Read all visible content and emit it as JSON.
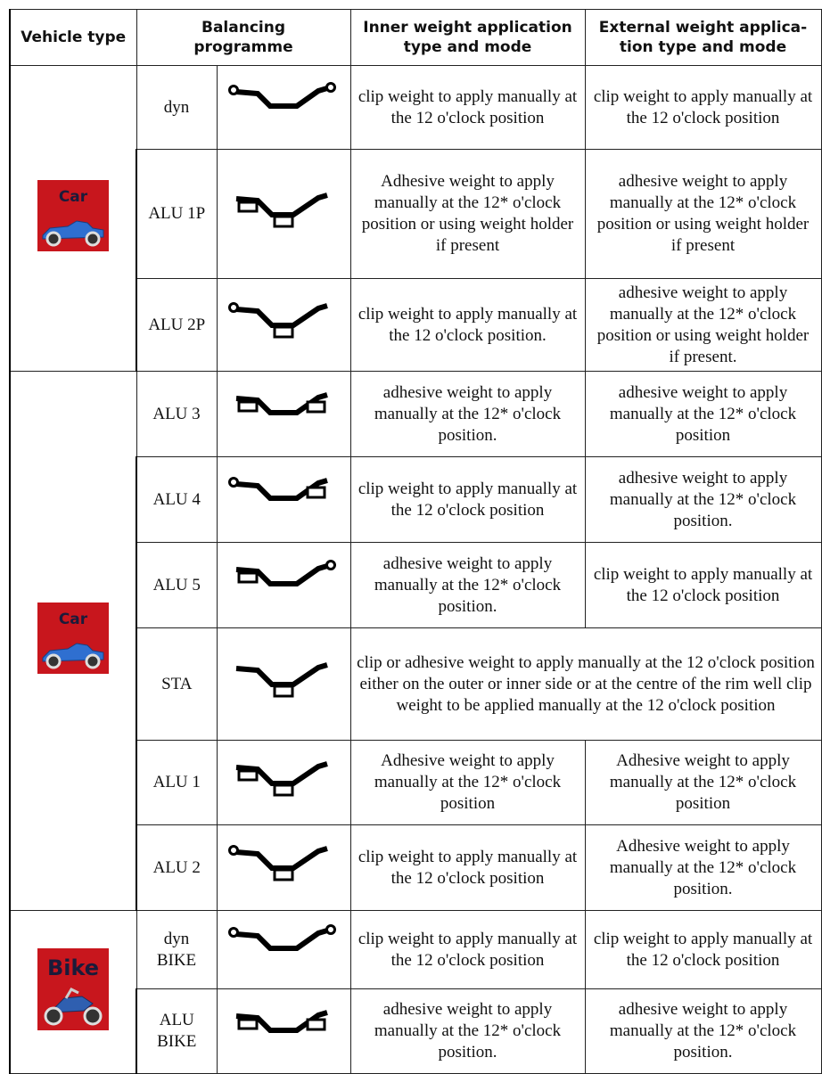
{
  "header": {
    "vehicle_type": "Vehicle type",
    "balancing_programme": "Balancing\nprogramme",
    "inner": "Inner weight application\ntype and mode",
    "external": "External weight applica-\ntion type and mode"
  },
  "groups": [
    {
      "vehicle": "Car",
      "rows": [
        {
          "programme": "dyn",
          "inner": "clip weight to apply manually at the 12 o'clock position",
          "external": "clip weight to apply manually at the 12 o'clock position"
        },
        {
          "programme": "ALU 1P",
          "inner": "Adhesive weight to apply manually at the 12* o'clock position or using weight holder if present",
          "external": "adhesive weight to apply manually at the 12* o'clock position or using weight holder if present"
        },
        {
          "programme": "ALU 2P",
          "inner": "clip weight to apply manually at the 12 o'clock position.",
          "external": "adhesive weight to apply manually at the 12* o'clock position or using weight holder if present."
        }
      ]
    },
    {
      "vehicle": "Car",
      "rows": [
        {
          "programme": "ALU 3",
          "inner": "adhesive weight to apply manually at the 12* o'clock position.",
          "external": "adhesive weight to apply manually at the 12* o'clock position"
        },
        {
          "programme": "ALU 4",
          "inner": "clip weight to apply manually at the 12 o'clock position",
          "external": "adhesive weight to apply manually at the 12* o'clock position."
        },
        {
          "programme": "ALU 5",
          "inner": "adhesive weight to apply manually at the 12* o'clock position.",
          "external": "clip weight to apply manually at the 12 o'clock position"
        },
        {
          "programme": "STA",
          "inner_external": "clip or adhesive weight to apply manually at the 12 o'clock position either on the outer or inner side or at the centre of the rim well clip weight to be applied manually at the 12 o'clock position"
        },
        {
          "programme": "ALU 1",
          "inner": "Adhesive weight to apply manually at the 12* o'clock position",
          "external": "Adhesive weight to apply manually at the 12* o'clock position"
        },
        {
          "programme": "ALU 2",
          "inner": "clip weight to apply manually at the 12 o'clock position",
          "external": "Adhesive weight to apply manually at the 12* o'clock position."
        }
      ]
    },
    {
      "vehicle": "Bike",
      "rows": [
        {
          "programme": "dyn BIKE",
          "inner": "clip weight to apply manually at the 12 o'clock position",
          "external": "clip weight to apply manually at the 12 o'clock position"
        },
        {
          "programme": "ALU BIKE",
          "inner": "adhesive weight to apply manually at the 12* o'clock position.",
          "external": "adhesive weight to apply manually at the 12* o'clock position."
        }
      ]
    }
  ]
}
